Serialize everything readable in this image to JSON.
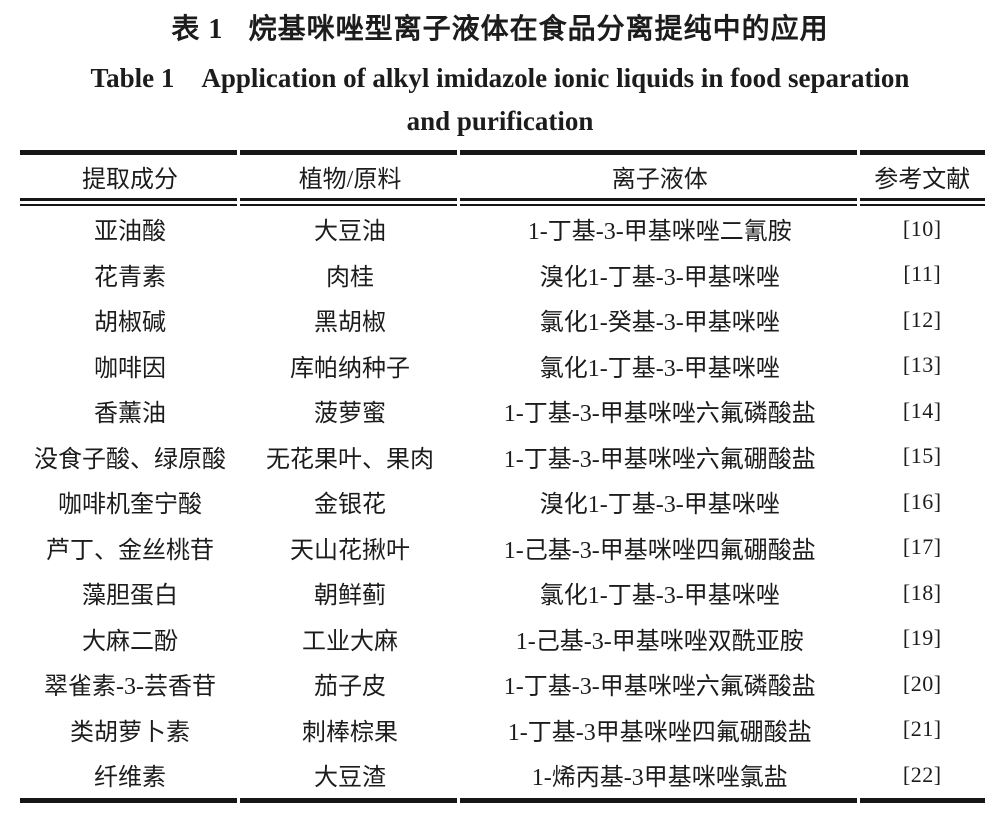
{
  "page": {
    "background": "#ffffff",
    "text_color": "#1c1c1c",
    "rule_color": "#161616"
  },
  "titles": {
    "cn_label": "表 1",
    "cn_text": "烷基咪唑型离子液体在食品分离提纯中的应用",
    "en_label": "Table 1",
    "en_line1": "Application of alkyl imidazole ionic liquids in food separation",
    "en_line2": "and purification"
  },
  "table": {
    "headers": [
      "提取成分",
      "植物/原料",
      "离子液体",
      "参考文献"
    ],
    "rows": [
      [
        "亚油酸",
        "大豆油",
        "1-丁基-3-甲基咪唑二氰胺",
        "[10]"
      ],
      [
        "花青素",
        "肉桂",
        "溴化1-丁基-3-甲基咪唑",
        "[11]"
      ],
      [
        "胡椒碱",
        "黑胡椒",
        "氯化1-癸基-3-甲基咪唑",
        "[12]"
      ],
      [
        "咖啡因",
        "库帕纳种子",
        "氯化1-丁基-3-甲基咪唑",
        "[13]"
      ],
      [
        "香薰油",
        "菠萝蜜",
        "1-丁基-3-甲基咪唑六氟磷酸盐",
        "[14]"
      ],
      [
        "没食子酸、绿原酸",
        "无花果叶、果肉",
        "1-丁基-3-甲基咪唑六氟硼酸盐",
        "[15]"
      ],
      [
        "咖啡机奎宁酸",
        "金银花",
        "溴化1-丁基-3-甲基咪唑",
        "[16]"
      ],
      [
        "芦丁、金丝桃苷",
        "天山花揪叶",
        "1-己基-3-甲基咪唑四氟硼酸盐",
        "[17]"
      ],
      [
        "藻胆蛋白",
        "朝鲜蓟",
        "氯化1-丁基-3-甲基咪唑",
        "[18]"
      ],
      [
        "大麻二酚",
        "工业大麻",
        "1-己基-3-甲基咪唑双酰亚胺",
        "[19]"
      ],
      [
        "翠雀素-3-芸香苷",
        "茄子皮",
        "1-丁基-3-甲基咪唑六氟磷酸盐",
        "[20]"
      ],
      [
        "类胡萝卜素",
        "刺棒棕果",
        "1-丁基-3甲基咪唑四氟硼酸盐",
        "[21]"
      ],
      [
        "纤维素",
        "大豆渣",
        "1-烯丙基-3甲基咪唑氯盐",
        "[22]"
      ]
    ]
  }
}
